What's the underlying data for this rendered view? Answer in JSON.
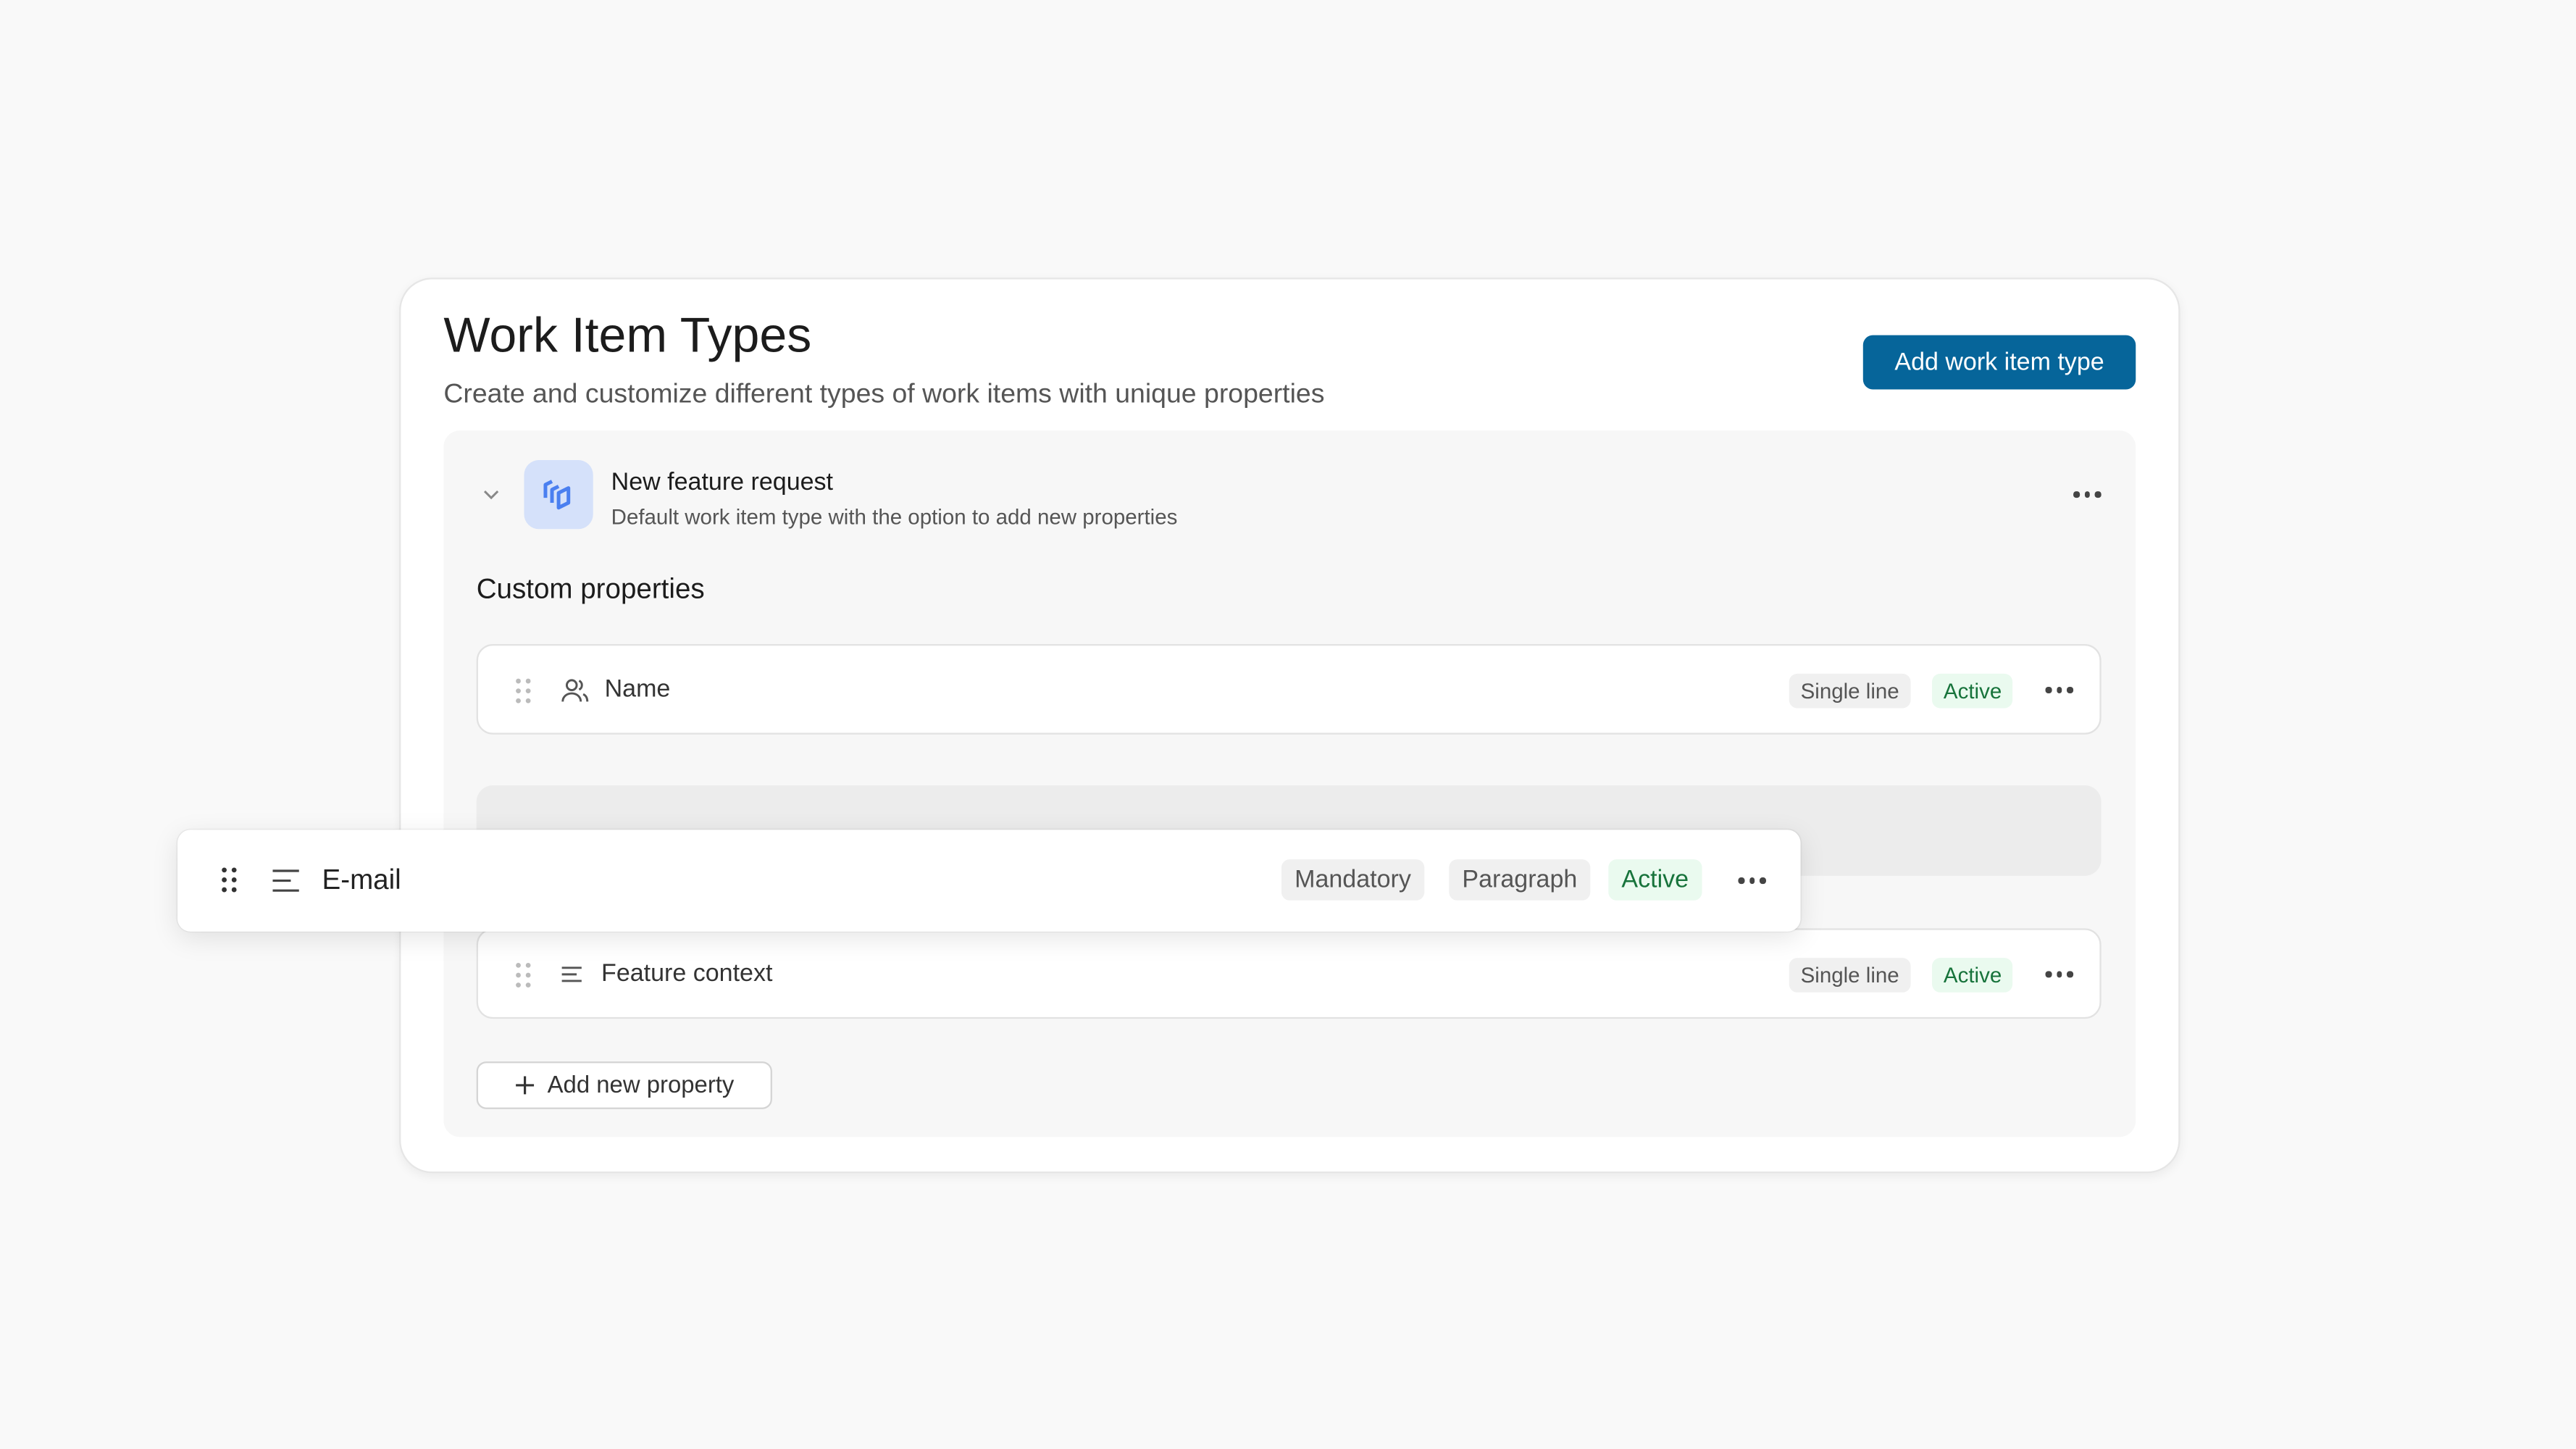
{
  "header": {
    "title": "Work Item Types",
    "subtitle": "Create and customize different types of work items with unique properties",
    "add_button": "Add work item type"
  },
  "work_item_type": {
    "name": "New feature request",
    "description": "Default work item type with the option to add new properties",
    "icon": "layers-icon",
    "icon_color": "#4a7ff0"
  },
  "custom_properties": {
    "heading": "Custom properties",
    "rows": [
      {
        "label": "Name",
        "icon": "users-icon",
        "type": "Single line",
        "status": "Active"
      },
      {
        "label": "Feature context",
        "icon": "text-lines-icon",
        "type": "Single line",
        "status": "Active"
      }
    ],
    "dragging": {
      "label": "E-mail",
      "icon": "text-lines-icon",
      "badge": "Mandatory",
      "type": "Paragraph",
      "status": "Active"
    },
    "add_button": "Add new property"
  },
  "colors": {
    "primary": "#06659a",
    "active_text": "#17733b",
    "active_bg": "#eafaef"
  }
}
